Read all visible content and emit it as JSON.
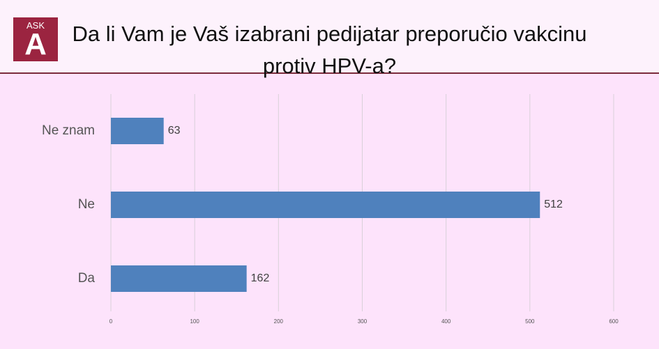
{
  "logo": {
    "top": "ASK",
    "letter": "A"
  },
  "chart_data": {
    "type": "hbar",
    "title": "Da li Vam je Vaš izabrani pedijatar preporučio vakcinu protiv HPV-a?",
    "categories": [
      "Ne znam",
      "Ne",
      "Da"
    ],
    "values": [
      63,
      512,
      162
    ],
    "color": "#4f81bd",
    "xlim": [
      0,
      600
    ],
    "xticks": [
      0,
      100,
      200,
      300,
      400,
      500,
      600
    ],
    "grid": true
  }
}
